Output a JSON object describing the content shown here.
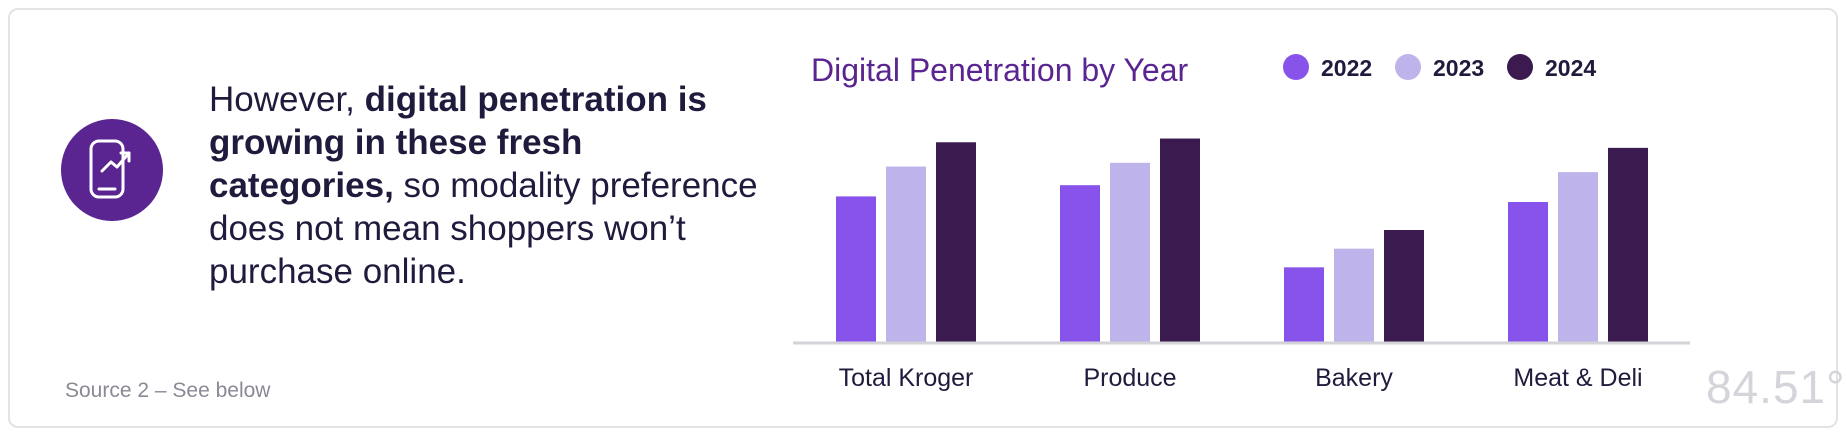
{
  "headline": {
    "part1": "However, ",
    "bold": "digital penetration is growing in these fresh categories,",
    "part2": " so modality preference does not mean shoppers won’t purchase online."
  },
  "source": "Source 2 – See below",
  "logo_text": "84.51°",
  "icon": "phone-trend-up-icon",
  "colors": {
    "accent": "#5a2491",
    "series": [
      "#8753ea",
      "#bfb3ec",
      "#3a1a4f"
    ],
    "text": "#1f1b3d"
  },
  "chart_data": {
    "type": "bar",
    "title": "Digital Penetration by Year",
    "categories": [
      "Total Kroger",
      "Produce",
      "Bakery",
      "Meat & Deli"
    ],
    "series": [
      {
        "name": "2022",
        "values": [
          7.8,
          8.4,
          4.0,
          7.5
        ]
      },
      {
        "name": "2023",
        "values": [
          9.4,
          9.6,
          5.0,
          9.1
        ]
      },
      {
        "name": "2024",
        "values": [
          10.7,
          10.9,
          6.0,
          10.4
        ]
      }
    ],
    "xlabel": "",
    "ylabel": "",
    "ylim": [
      0,
      12
    ],
    "legend_position": "top-right",
    "grid": false
  }
}
